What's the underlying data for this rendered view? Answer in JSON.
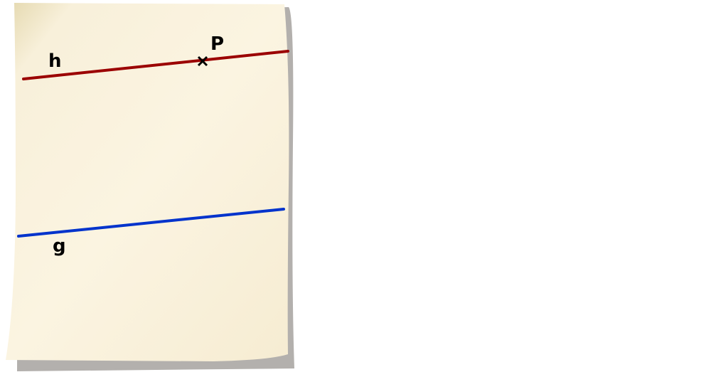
{
  "diagram": {
    "labels": {
      "line_h": "h",
      "line_g": "g",
      "point_p": "P"
    },
    "colors": {
      "line_h": "#9b0000",
      "line_g": "#0033cc",
      "paper": "#fbf4e0",
      "shadow": "#b3b0ad"
    },
    "point_marker": "cross-icon"
  }
}
